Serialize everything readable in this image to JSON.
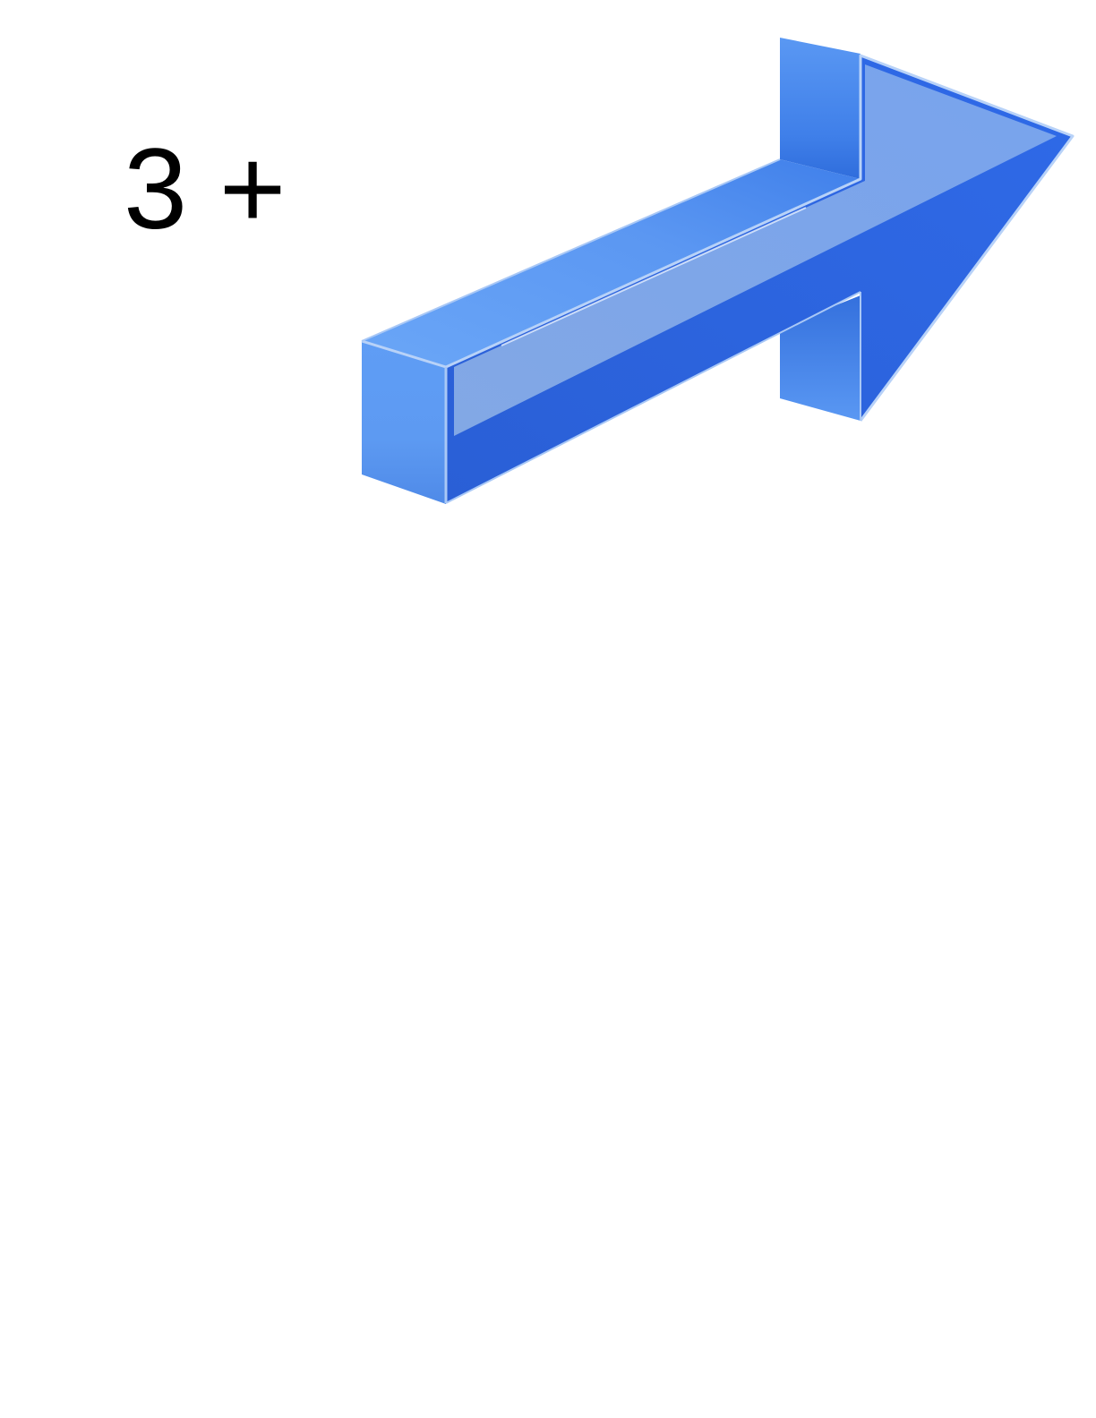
{
  "expression": {
    "text": "3 +"
  },
  "arrow": {
    "icon": "arrow-up-right-3d-icon",
    "colors": {
      "top_face": "#5f9cf5",
      "side_face": "#4a8cf0",
      "front_face": "#2d6ae6",
      "highlight": "#8fb4ec",
      "edge": "#b8d2f8"
    }
  }
}
